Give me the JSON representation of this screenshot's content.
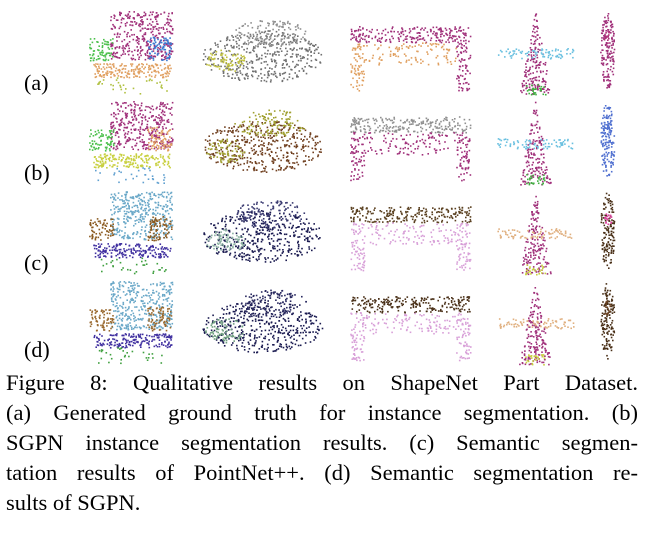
{
  "figure": {
    "row_labels": [
      "(a)",
      "(b)",
      "(c)",
      "(d)"
    ],
    "caption": {
      "lines": [
        "Figure 8:  Qualitative results on ShapeNet Part Dataset.",
        "(a) Generated ground truth for instance segmentation.  (b)",
        "SGPN instance segmentation results. (c) Semantic segmen-",
        "tation results of PointNet++. (d) Semantic segmentation re-",
        "sults of SGPN."
      ]
    }
  }
}
